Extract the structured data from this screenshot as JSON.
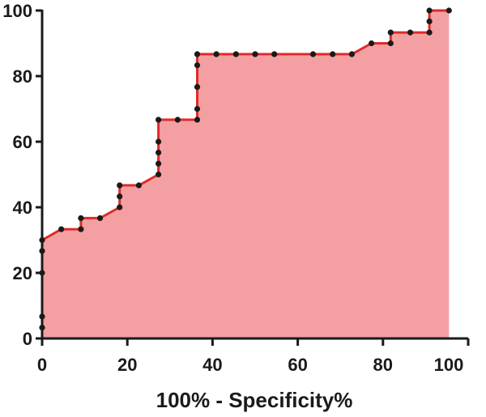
{
  "chart_data": {
    "type": "area",
    "title": "",
    "xlabel": "100% - Specificity%",
    "ylabel": "",
    "xlim": [
      0,
      100
    ],
    "ylim": [
      0,
      100
    ],
    "x_ticks": [
      0,
      20,
      40,
      60,
      80,
      100
    ],
    "y_ticks": [
      0,
      20,
      40,
      60,
      80,
      100
    ],
    "grid": false,
    "legend": "none",
    "colors": {
      "fill": "#f4a0a3",
      "line": "#e02a2a",
      "marker": "#1a1a1a",
      "axis": "#1a1a1a"
    },
    "series": [
      {
        "points": [
          [
            0,
            3.3
          ],
          [
            0,
            6.7
          ],
          [
            0,
            20
          ],
          [
            0,
            26.7
          ],
          [
            0,
            30
          ],
          [
            4.5,
            33.3
          ],
          [
            9.1,
            33.3
          ],
          [
            9.1,
            36.7
          ],
          [
            13.6,
            36.7
          ],
          [
            18.2,
            40
          ],
          [
            18.2,
            43.3
          ],
          [
            18.2,
            46.7
          ],
          [
            22.7,
            46.7
          ],
          [
            27.3,
            50
          ],
          [
            27.3,
            53.3
          ],
          [
            27.3,
            56.7
          ],
          [
            27.3,
            60
          ],
          [
            27.3,
            66.7
          ],
          [
            31.8,
            66.7
          ],
          [
            36.4,
            66.7
          ],
          [
            36.4,
            70
          ],
          [
            36.4,
            76.7
          ],
          [
            36.4,
            83.3
          ],
          [
            36.4,
            86.7
          ],
          [
            40.9,
            86.7
          ],
          [
            45.5,
            86.7
          ],
          [
            50,
            86.7
          ],
          [
            54.5,
            86.7
          ],
          [
            63.6,
            86.7
          ],
          [
            68.2,
            86.7
          ],
          [
            72.7,
            86.7
          ],
          [
            77.3,
            90
          ],
          [
            81.8,
            90
          ],
          [
            81.8,
            93.3
          ],
          [
            86.4,
            93.3
          ],
          [
            90.9,
            93.3
          ],
          [
            90.9,
            96.7
          ],
          [
            90.9,
            100
          ],
          [
            95.5,
            100
          ]
        ]
      }
    ]
  }
}
